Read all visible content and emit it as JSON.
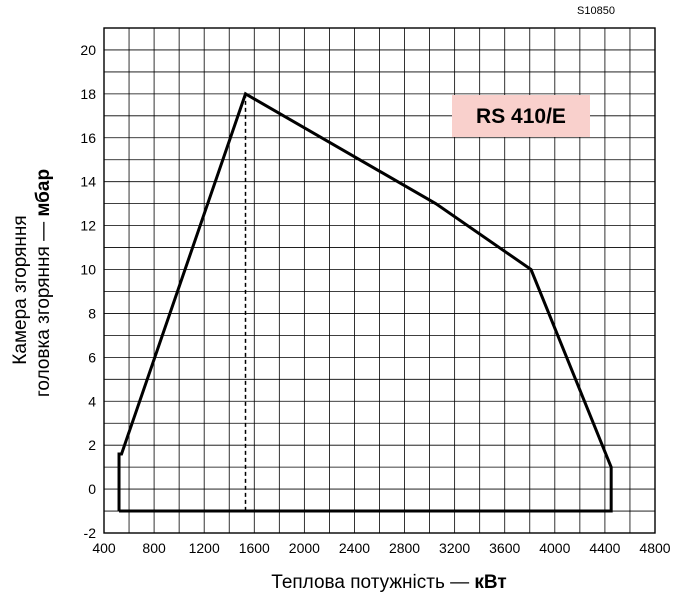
{
  "chart_data": {
    "type": "line",
    "code": "S10850",
    "badge": {
      "label": "RS 410/E",
      "color": "#f9d0cc"
    },
    "xlabel": {
      "text": "Теплова потужність — ",
      "unit": "кВт"
    },
    "ylabel": {
      "line1": "Камера згоряння",
      "line2": "головка згоряння — ",
      "unit": "мбар"
    },
    "xlim": [
      400,
      4800
    ],
    "ylim": [
      -2,
      21
    ],
    "x_ticks": [
      400,
      800,
      1200,
      1600,
      2000,
      2400,
      2800,
      3200,
      3600,
      4000,
      4400,
      4800
    ],
    "x_tick_labels": [
      "400",
      "800",
      "1200",
      "1600",
      "2000",
      "2400",
      "2800",
      "3200",
      "3600",
      "4000",
      "4400",
      "4800"
    ],
    "y_ticks": [
      -2,
      0,
      2,
      4,
      6,
      8,
      10,
      12,
      14,
      16,
      18,
      20
    ],
    "y_tick_labels": [
      "-2",
      "0",
      "2",
      "4",
      "6",
      "8",
      "10",
      "12",
      "14",
      "16",
      "18",
      "20"
    ],
    "grid": {
      "x_step": 200,
      "y_step": 1
    },
    "series": [
      {
        "style": "solid",
        "x": [
          520,
          520,
          540,
          1530,
          3050,
          3810,
          4450,
          4450,
          520
        ],
        "y": [
          -1,
          1.6,
          1.6,
          18,
          13,
          10,
          1,
          -1,
          -1
        ]
      },
      {
        "style": "dashed",
        "x": [
          1530,
          1530
        ],
        "y": [
          18,
          -1
        ]
      }
    ]
  }
}
